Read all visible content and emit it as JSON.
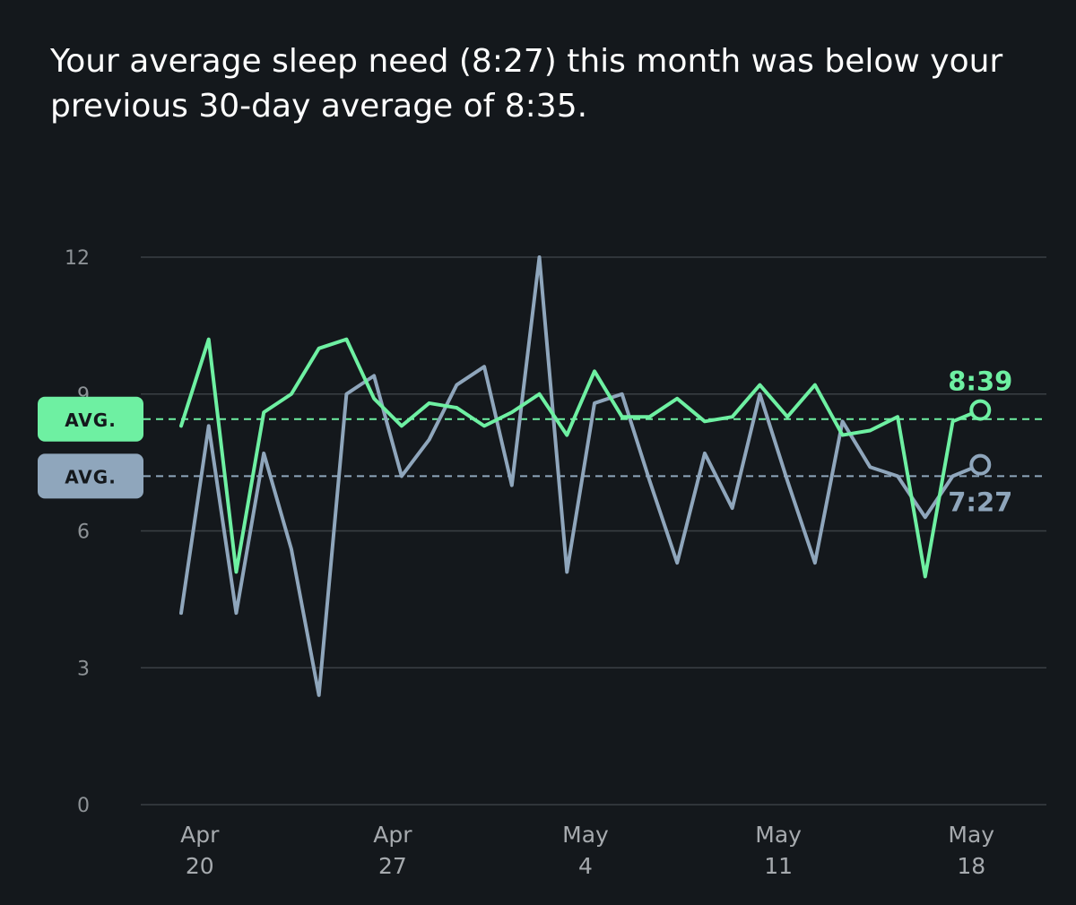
{
  "headline": "Your average sleep need (8:27) this month was below your previous 30-day average of 8:35.",
  "colors": {
    "background": "#14181c",
    "need_series": "#6ef0a2",
    "sleep_series": "#8fa6bc",
    "grid": "#3a3f44",
    "tick": "#8d9296"
  },
  "chart_data": {
    "type": "line",
    "y_ticks": [
      0,
      3,
      6,
      9,
      12
    ],
    "ylim": [
      0,
      12
    ],
    "x_range": [
      0,
      30
    ],
    "x_ticks": [
      {
        "x": 1,
        "month": "Apr",
        "day": "20"
      },
      {
        "x": 8,
        "month": "Apr",
        "day": "27"
      },
      {
        "x": 15,
        "month": "May",
        "day": "4"
      },
      {
        "x": 22,
        "month": "May",
        "day": "11"
      },
      {
        "x": 29,
        "month": "May",
        "day": "18"
      }
    ],
    "grid": true,
    "series": [
      {
        "key": "need",
        "color": "#6ef0a2",
        "values": [
          8.3,
          10.2,
          5.1,
          8.6,
          9.0,
          10.0,
          10.2,
          8.9,
          8.3,
          8.8,
          8.7,
          8.3,
          8.6,
          9.0,
          8.1,
          9.5,
          8.5,
          8.5,
          8.9,
          8.4,
          8.5,
          9.2,
          8.5,
          9.2,
          8.1,
          8.2,
          8.5,
          5.0,
          8.4,
          8.65
        ],
        "avg_value": 8.45,
        "avg_label": "AVG.",
        "end_label": "8:39"
      },
      {
        "key": "sleep",
        "color": "#8fa6bc",
        "values": [
          4.2,
          8.3,
          4.2,
          7.7,
          5.6,
          2.4,
          9.0,
          9.4,
          7.2,
          8.0,
          9.2,
          9.6,
          7.0,
          12.0,
          5.1,
          8.8,
          9.0,
          7.1,
          5.3,
          7.7,
          6.5,
          9.0,
          7.1,
          5.3,
          8.4,
          7.4,
          7.2,
          6.3,
          7.2,
          7.45
        ],
        "avg_value": 7.2,
        "avg_label": "AVG.",
        "end_label": "7:27"
      }
    ]
  }
}
